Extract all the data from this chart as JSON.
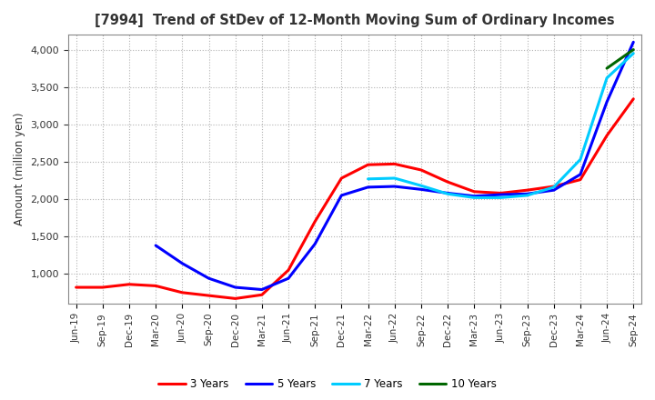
{
  "title": "[7994]  Trend of StDev of 12-Month Moving Sum of Ordinary Incomes",
  "ylabel": "Amount (million yen)",
  "background_color": "#ffffff",
  "grid_color": "#b0b0b0",
  "ylim": [
    600,
    4200
  ],
  "yticks": [
    1000,
    1500,
    2000,
    2500,
    3000,
    3500,
    4000
  ],
  "series": {
    "3 Years": {
      "color": "#ff0000",
      "data": [
        [
          "Jun-19",
          820
        ],
        [
          "Sep-19",
          820
        ],
        [
          "Dec-19",
          860
        ],
        [
          "Mar-20",
          840
        ],
        [
          "Jun-20",
          750
        ],
        [
          "Sep-20",
          710
        ],
        [
          "Dec-20",
          670
        ],
        [
          "Mar-21",
          720
        ],
        [
          "Jun-21",
          1050
        ],
        [
          "Sep-21",
          1700
        ],
        [
          "Dec-21",
          2280
        ],
        [
          "Mar-22",
          2460
        ],
        [
          "Jun-22",
          2470
        ],
        [
          "Sep-22",
          2390
        ],
        [
          "Dec-22",
          2230
        ],
        [
          "Mar-23",
          2100
        ],
        [
          "Jun-23",
          2080
        ],
        [
          "Sep-23",
          2120
        ],
        [
          "Dec-23",
          2170
        ],
        [
          "Mar-24",
          2260
        ],
        [
          "Jun-24",
          2850
        ],
        [
          "Sep-24",
          3340
        ]
      ]
    },
    "5 Years": {
      "color": "#0000ff",
      "data": [
        [
          "Mar-20",
          1380
        ],
        [
          "Jun-20",
          1140
        ],
        [
          "Sep-20",
          940
        ],
        [
          "Dec-20",
          820
        ],
        [
          "Mar-21",
          790
        ],
        [
          "Jun-21",
          940
        ],
        [
          "Sep-21",
          1400
        ],
        [
          "Dec-21",
          2050
        ],
        [
          "Mar-22",
          2160
        ],
        [
          "Jun-22",
          2170
        ],
        [
          "Sep-22",
          2130
        ],
        [
          "Dec-22",
          2080
        ],
        [
          "Mar-23",
          2040
        ],
        [
          "Jun-23",
          2060
        ],
        [
          "Sep-23",
          2070
        ],
        [
          "Dec-23",
          2120
        ],
        [
          "Mar-24",
          2330
        ],
        [
          "Jun-24",
          3300
        ],
        [
          "Sep-24",
          4100
        ]
      ]
    },
    "7 Years": {
      "color": "#00ccff",
      "data": [
        [
          "Mar-22",
          2270
        ],
        [
          "Jun-22",
          2280
        ],
        [
          "Sep-22",
          2180
        ],
        [
          "Dec-22",
          2070
        ],
        [
          "Mar-23",
          2020
        ],
        [
          "Jun-23",
          2020
        ],
        [
          "Sep-23",
          2050
        ],
        [
          "Dec-23",
          2160
        ],
        [
          "Mar-24",
          2530
        ],
        [
          "Jun-24",
          3620
        ],
        [
          "Sep-24",
          3950
        ]
      ]
    },
    "10 Years": {
      "color": "#006600",
      "data": [
        [
          "Jun-24",
          3750
        ],
        [
          "Sep-24",
          4000
        ]
      ]
    }
  },
  "legend_order": [
    "3 Years",
    "5 Years",
    "7 Years",
    "10 Years"
  ],
  "x_labels": [
    "Jun-19",
    "Sep-19",
    "Dec-19",
    "Mar-20",
    "Jun-20",
    "Sep-20",
    "Dec-20",
    "Mar-21",
    "Jun-21",
    "Sep-21",
    "Dec-21",
    "Mar-22",
    "Jun-22",
    "Sep-22",
    "Dec-22",
    "Mar-23",
    "Jun-23",
    "Sep-23",
    "Dec-23",
    "Mar-24",
    "Jun-24",
    "Sep-24"
  ]
}
